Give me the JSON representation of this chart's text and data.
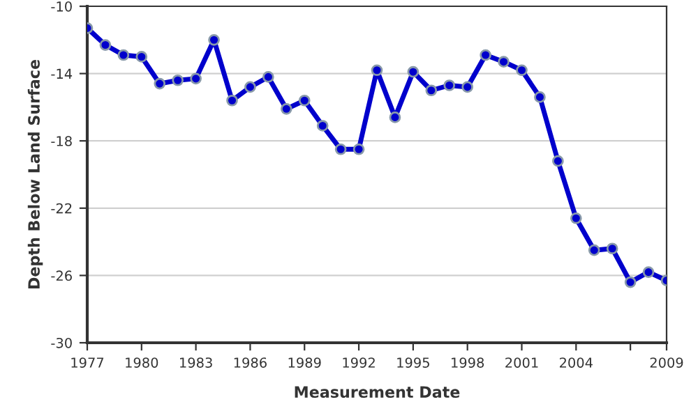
{
  "chart_data": {
    "type": "line",
    "xlabel": "Measurement Date",
    "ylabel": "Depth Below Land Surface",
    "x": [
      1977,
      1978,
      1979,
      1980,
      1981,
      1982,
      1983,
      1984,
      1985,
      1986,
      1987,
      1988,
      1989,
      1990,
      1991,
      1992,
      1993,
      1994,
      1995,
      1996,
      1997,
      1998,
      1999,
      2000,
      2001,
      2002,
      2003,
      2004,
      2005,
      2006,
      2007,
      2008,
      2009
    ],
    "series": [
      {
        "color": "#0000cc",
        "values": [
          -11.3,
          -12.3,
          -12.9,
          -13.0,
          -14.6,
          -14.4,
          -14.3,
          -12.0,
          -15.6,
          -14.8,
          -14.2,
          -16.1,
          -15.6,
          -17.1,
          -18.5,
          -18.5,
          -13.8,
          -16.6,
          -13.9,
          -15.0,
          -14.7,
          -14.8,
          -12.9,
          -13.3,
          -13.8,
          -15.4,
          -19.2,
          -22.6,
          -24.5,
          -24.4,
          -26.4,
          -25.8,
          -26.3
        ]
      }
    ],
    "xlim": [
      1977,
      2009
    ],
    "xticks": [
      1977,
      1980,
      1983,
      1986,
      1989,
      1992,
      1995,
      1998,
      2001,
      2004,
      {
        "value": 2007,
        "label": null
      },
      2009
    ],
    "ylim": [
      -30,
      -10
    ],
    "yticks": [
      -30,
      -26,
      -22,
      -18,
      -14,
      -10
    ],
    "grid": "y",
    "marker": "circle",
    "line_style": "solid",
    "legend": false
  }
}
